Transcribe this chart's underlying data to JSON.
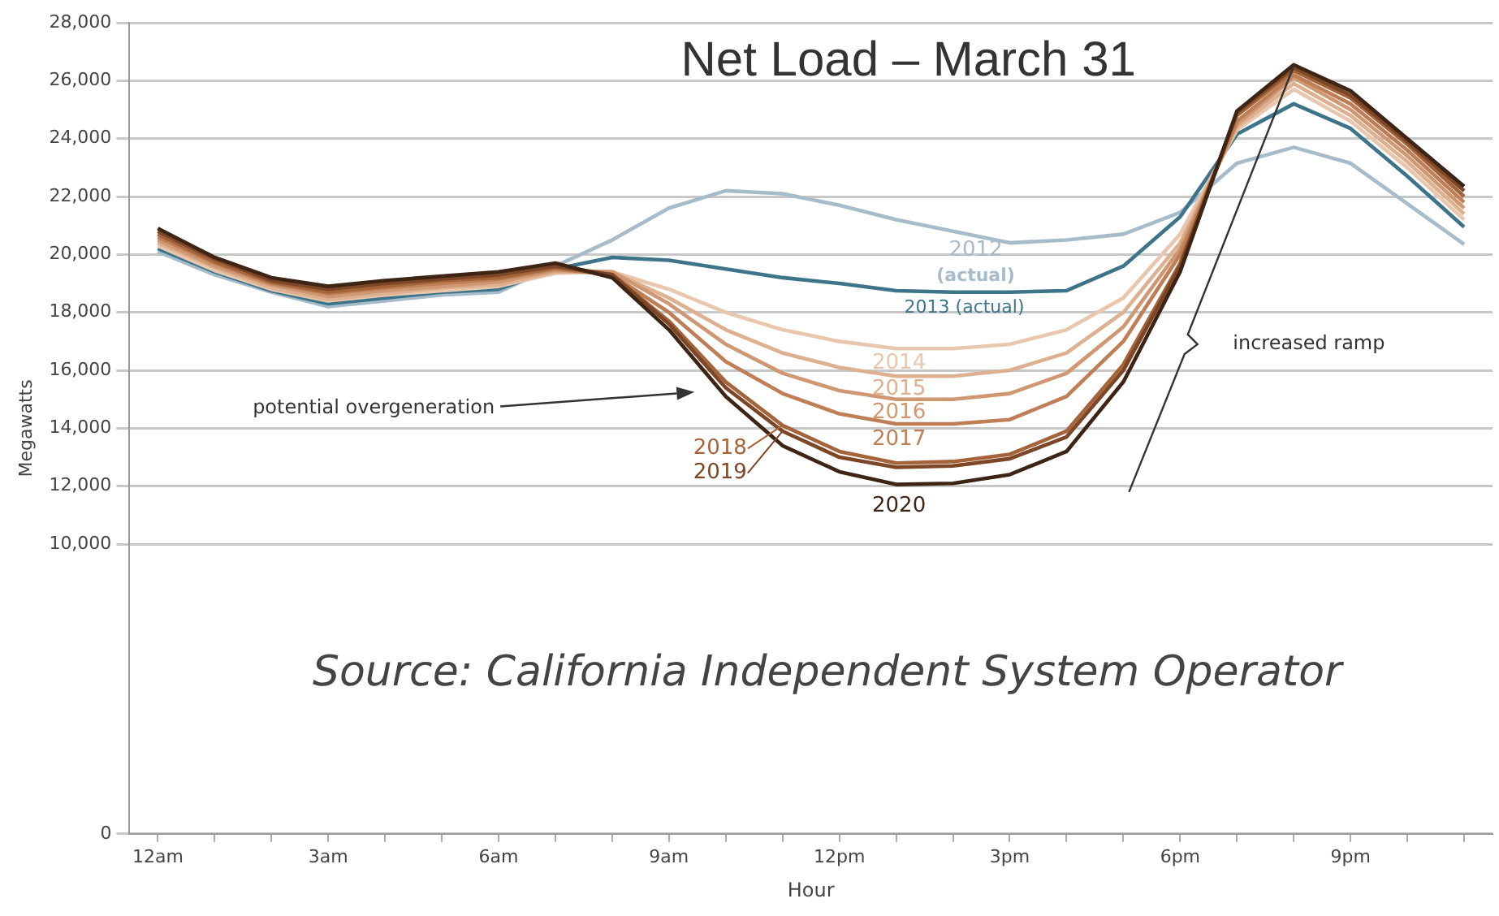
{
  "chart_data": {
    "type": "line",
    "title": "Net Load – March 31",
    "xlabel": "Hour",
    "ylabel": "Megawatts",
    "categories": [
      "12am",
      null,
      null,
      "3am",
      null,
      null,
      "6am",
      null,
      null,
      "9am",
      null,
      null,
      "12pm",
      null,
      null,
      "3pm",
      null,
      null,
      "6pm",
      null,
      null,
      "9pm",
      null,
      null
    ],
    "series": [
      {
        "name": "2012 (actual)",
        "color": "#a7bccb",
        "values": [
          20100,
          19300,
          18700,
          18200,
          18400,
          18600,
          18700,
          19600,
          20500,
          21600,
          22200,
          22100,
          21700,
          21200,
          20800,
          20400,
          20500,
          20700,
          21450,
          23150,
          23700,
          23150,
          21750,
          20350
        ]
      },
      {
        "name": "2013 (actual)",
        "color": "#3d7489",
        "values": [
          20200,
          19400,
          18750,
          18300,
          18500,
          18700,
          18800,
          19500,
          19900,
          19800,
          19500,
          19200,
          19000,
          18750,
          18700,
          18700,
          18750,
          19600,
          21300,
          24150,
          25200,
          24350,
          22700,
          20950
        ]
      },
      {
        "name": "2014",
        "color": "#e8c7ae",
        "values": [
          20300,
          19450,
          18800,
          18400,
          18600,
          18750,
          18900,
          19350,
          19400,
          18800,
          18000,
          17400,
          17000,
          16750,
          16750,
          16900,
          17400,
          18500,
          20700,
          24300,
          25700,
          24600,
          23000,
          21200
        ]
      },
      {
        "name": "2015",
        "color": "#ddb08f",
        "values": [
          20400,
          19550,
          18850,
          18450,
          18650,
          18850,
          18950,
          19400,
          19400,
          18500,
          17400,
          16600,
          16100,
          15800,
          15800,
          16000,
          16600,
          18000,
          20400,
          24400,
          25900,
          24800,
          23200,
          21400
        ]
      },
      {
        "name": "2016",
        "color": "#cf9873",
        "values": [
          20500,
          19600,
          18950,
          18550,
          18750,
          18900,
          19050,
          19450,
          19400,
          18300,
          16900,
          15900,
          15300,
          15000,
          15000,
          15200,
          15900,
          17500,
          20200,
          24500,
          26100,
          25000,
          23400,
          21600
        ]
      },
      {
        "name": "2017",
        "color": "#bf7f56",
        "values": [
          20600,
          19700,
          19000,
          18650,
          18850,
          19000,
          19150,
          19500,
          19300,
          18000,
          16300,
          15200,
          14500,
          14150,
          14150,
          14300,
          15100,
          17000,
          20000,
          24600,
          26200,
          25200,
          23600,
          21800
        ]
      },
      {
        "name": "2018",
        "color": "#a4643a",
        "values": [
          20700,
          19750,
          19050,
          18700,
          18900,
          19100,
          19200,
          19550,
          19300,
          17700,
          15600,
          14100,
          13200,
          12800,
          12850,
          13100,
          13900,
          16200,
          19700,
          24800,
          26350,
          25400,
          23800,
          22000
        ]
      },
      {
        "name": "2019",
        "color": "#7d4626",
        "values": [
          20800,
          19850,
          19100,
          18800,
          19000,
          19150,
          19300,
          19600,
          19300,
          17600,
          15400,
          13900,
          13000,
          12650,
          12700,
          12950,
          13700,
          16000,
          19600,
          24900,
          26450,
          25500,
          23900,
          22200
        ]
      },
      {
        "name": "2020",
        "color": "#3e2414",
        "values": [
          20900,
          19900,
          19200,
          18900,
          19100,
          19250,
          19400,
          19700,
          19200,
          17400,
          15100,
          13400,
          12500,
          12060,
          12100,
          12400,
          13200,
          15600,
          19400,
          24950,
          26550,
          25650,
          24000,
          22350
        ]
      }
    ],
    "ylim": [
      0,
      28000
    ],
    "yticks": [
      {
        "value": 0,
        "label": "0"
      },
      {
        "value": 10000,
        "label": "10,000"
      },
      {
        "value": 12000,
        "label": "12,000"
      },
      {
        "value": 14000,
        "label": "14,000"
      },
      {
        "value": 16000,
        "label": "16,000"
      },
      {
        "value": 18000,
        "label": "18,000"
      },
      {
        "value": 20000,
        "label": "20,000"
      },
      {
        "value": 22000,
        "label": "22,000"
      },
      {
        "value": 24000,
        "label": "24,000"
      },
      {
        "value": 26000,
        "label": "26,000"
      },
      {
        "value": 28000,
        "label": "28,000"
      }
    ],
    "grid": "y",
    "marker": "none",
    "annotations": [
      "potential overgeneration",
      "increased ramp",
      "Source: California Independent System Operator"
    ]
  }
}
